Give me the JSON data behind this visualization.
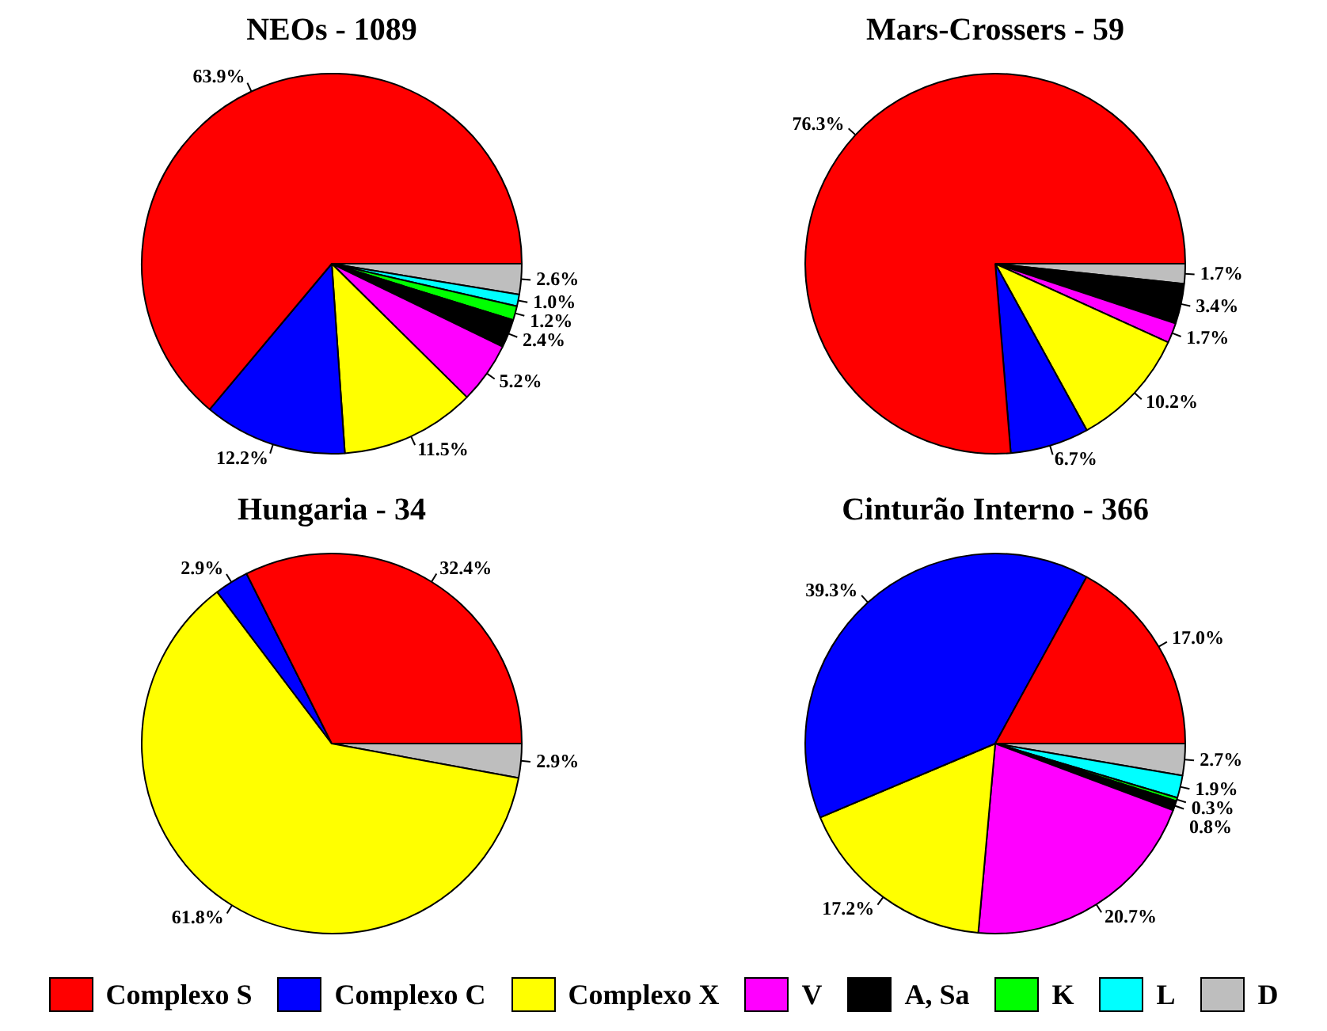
{
  "chart_data": [
    {
      "type": "pie",
      "title": "NEOs - 1089",
      "categories": [
        "Complexo S",
        "Complexo C",
        "Complexo X",
        "V",
        "A, Sa",
        "K",
        "L",
        "D"
      ],
      "values": [
        63.9,
        12.2,
        11.5,
        5.2,
        2.4,
        1.2,
        1.0,
        2.6
      ],
      "value_labels": [
        "63.9%",
        "12.2%",
        "11.5%",
        "5.2%",
        "2.4%",
        "1.2%",
        "1.0%",
        "2.6%"
      ],
      "colors": [
        "#ff0000",
        "#0000ff",
        "#ffff00",
        "#ff00ff",
        "#000000",
        "#00ff00",
        "#00ffff",
        "#bebebe"
      ],
      "legend": "bottom"
    },
    {
      "type": "pie",
      "title": "Mars-Crossers - 59",
      "categories": [
        null,
        null,
        null,
        null,
        null,
        null,
        null,
        null
      ],
      "values": [
        76.3,
        6.7,
        10.2,
        1.7,
        3.4,
        0,
        0,
        1.7
      ],
      "value_labels": [
        "76.3%",
        "6.7%",
        "10.2%",
        "1.7%",
        "3.4%",
        null,
        null,
        "1.7%"
      ],
      "colors": [
        "#ff0000",
        "#0000ff",
        "#ffff00",
        "#ff00ff",
        "#000000",
        "#00ff00",
        "#00ffff",
        "#bebebe"
      ]
    },
    {
      "type": "pie",
      "title": "Hungaria - 34",
      "categories": [
        null,
        null,
        null,
        null,
        null,
        null,
        null,
        null
      ],
      "values": [
        32.4,
        2.9,
        61.8,
        0,
        0,
        0,
        0,
        2.9
      ],
      "value_labels": [
        "32.4%",
        "2.9%",
        "61.8%",
        null,
        null,
        null,
        null,
        "2.9%"
      ],
      "colors": [
        "#ff0000",
        "#0000ff",
        "#ffff00",
        "#ff00ff",
        "#000000",
        "#00ff00",
        "#00ffff",
        "#bebebe"
      ]
    },
    {
      "type": "pie",
      "title": "Cinturão Interno - 366",
      "categories": [
        null,
        null,
        null,
        null,
        null,
        null,
        null,
        null
      ],
      "values": [
        17.0,
        39.3,
        17.2,
        20.7,
        0.8,
        0.3,
        1.9,
        2.7
      ],
      "value_labels": [
        "17.0%",
        "39.3%",
        "17.2%",
        "20.7%",
        "0.8%",
        "0.3%",
        "1.9%",
        "2.7%"
      ],
      "colors": [
        "#ff0000",
        "#0000ff",
        "#ffff00",
        "#ff00ff",
        "#000000",
        "#00ff00",
        "#00ffff",
        "#bebebe"
      ]
    }
  ]
}
